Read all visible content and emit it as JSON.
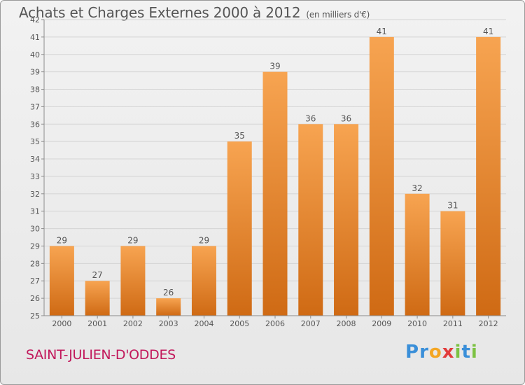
{
  "header": {
    "title": "Achats et Charges Externes 2000 à 2012",
    "unit": "(en milliers d'€)"
  },
  "footer": {
    "town": "SAINT-JULIEN-D'ODDES",
    "logo_text": "Proxiti"
  },
  "colors": {
    "bar_top": "#f7a451",
    "bar_bottom": "#cf6a14",
    "axis": "#8c8c8c",
    "grid": "#d4d4d4",
    "text": "#555555",
    "town": "#c2185b"
  },
  "chart_data": {
    "type": "bar",
    "title": "Achats et Charges Externes 2000 à 2012",
    "subtitle": "(en milliers d'€)",
    "categories": [
      "2000",
      "2001",
      "2002",
      "2003",
      "2004",
      "2005",
      "2006",
      "2007",
      "2008",
      "2009",
      "2010",
      "2011",
      "2012"
    ],
    "values": [
      29,
      27,
      29,
      26,
      29,
      35,
      39,
      36,
      36,
      41,
      32,
      31,
      41
    ],
    "data_labels": [
      "29",
      "27",
      "29",
      "26",
      "29",
      "35",
      "39",
      "36",
      "36",
      "41",
      "32",
      "31",
      "41"
    ],
    "ylim": [
      25,
      42
    ],
    "yticks": [
      25,
      26,
      27,
      28,
      29,
      30,
      31,
      32,
      33,
      34,
      35,
      36,
      37,
      38,
      39,
      40,
      41,
      42
    ],
    "grid": true,
    "xlabel": "",
    "ylabel": ""
  }
}
